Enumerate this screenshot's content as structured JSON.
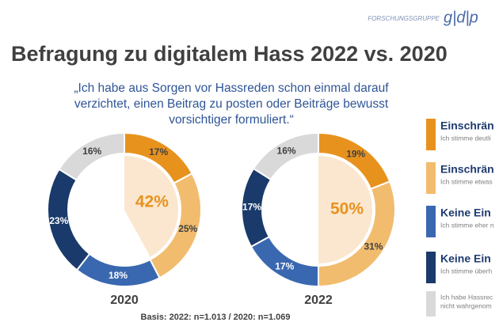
{
  "logo": {
    "text": "FORSCHUNGSGRUPPE",
    "brand": "g|d|p"
  },
  "title": "Befragung zu digitalem Hass 2022 vs. 2020",
  "quote": [
    "„Ich habe aus Sorgen vor Hassreden schon einmal darauf",
    "verzichtet, einen Beitrag zu posten oder Beiträge bewusst",
    "vorsichtiger formuliert.“"
  ],
  "chart_data": [
    {
      "type": "donut",
      "title": "2020",
      "values": [
        17,
        25,
        18,
        23,
        16
      ],
      "value_labels": [
        "17%",
        "25%",
        "18%",
        "23%",
        "16%"
      ],
      "colors": [
        "#e8921e",
        "#f2bc6e",
        "#3a68b0",
        "#193a6b",
        "#d9d9d9"
      ],
      "center_value": 42,
      "center_label": "42%"
    },
    {
      "type": "donut",
      "title": "2022",
      "values": [
        19,
        31,
        17,
        17,
        16
      ],
      "value_labels": [
        "19%",
        "31%",
        "17%",
        "17%",
        "16%"
      ],
      "colors": [
        "#e8921e",
        "#f2bc6e",
        "#3a68b0",
        "#193a6b",
        "#d9d9d9"
      ],
      "center_value": 50,
      "center_label": "50%"
    }
  ],
  "legend": [
    {
      "title": "Einschrän",
      "subtitle": [
        "Ich stimme deutli"
      ],
      "color": "#e8921e"
    },
    {
      "title": "Einschrän",
      "subtitle": [
        "Ich stimme etwas"
      ],
      "color": "#f2bc6e"
    },
    {
      "title": "Keine Ein",
      "subtitle": [
        "Ich stimme eher n"
      ],
      "color": "#3a68b0"
    },
    {
      "title": "Keine Ein",
      "subtitle": [
        "Ich stimme überh"
      ],
      "color": "#193a6b"
    },
    {
      "title": "",
      "subtitle": [
        "Ich habe Hassrec",
        "nicht wahrgenom"
      ],
      "color": "#d9d9d9"
    }
  ],
  "footnote": "Basis: 2022: n=1.013 / 2020: n=1.069"
}
